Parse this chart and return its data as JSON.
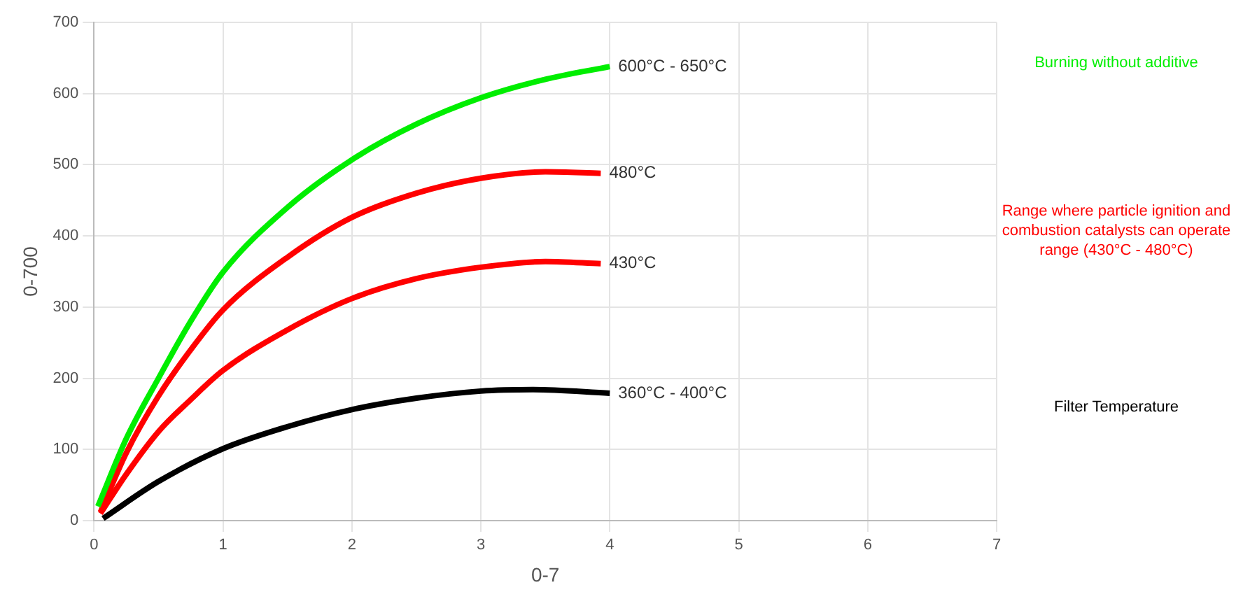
{
  "chart_data": {
    "type": "line",
    "xlabel": "0-7",
    "ylabel": "0-700",
    "xlim": [
      0,
      7
    ],
    "xticks": [
      0,
      1,
      2,
      3,
      4,
      5,
      6,
      7
    ],
    "ylim": [
      0,
      700
    ],
    "yticks": [
      0,
      100,
      200,
      300,
      400,
      500,
      600,
      700
    ],
    "grid": true,
    "legend": false,
    "marker": "none",
    "line_style": "solid",
    "series": [
      {
        "name": "600°C - 650°C",
        "color": "#00ee00",
        "x": [
          0.03,
          0.25,
          0.5,
          0.75,
          1,
          1.5,
          2,
          2.5,
          3,
          3.5,
          4
        ],
        "values": [
          20,
          115,
          200,
          280,
          349,
          440,
          507,
          557,
          594,
          620,
          638
        ]
      },
      {
        "name": "480°C",
        "color": "#ff0000",
        "x": [
          0.05,
          0.25,
          0.5,
          0.75,
          1,
          1.5,
          2,
          2.5,
          3,
          3.5,
          3.93
        ],
        "values": [
          12,
          95,
          175,
          240,
          296,
          370,
          426,
          460,
          481,
          490,
          488
        ]
      },
      {
        "name": "430°C",
        "color": "#ff0000",
        "x": [
          0.05,
          0.25,
          0.5,
          0.75,
          1,
          1.5,
          2,
          2.5,
          3,
          3.5,
          3.93
        ],
        "values": [
          10,
          65,
          125,
          170,
          211,
          268,
          312,
          340,
          356,
          364,
          361
        ]
      },
      {
        "name": "360°C - 400°C",
        "color": "#000000",
        "x": [
          0.07,
          0.5,
          1,
          1.5,
          2,
          2.5,
          3,
          3.4,
          4
        ],
        "values": [
          3,
          55,
          101,
          132,
          156,
          172,
          182,
          184,
          179
        ]
      }
    ],
    "annotations": [
      "Burning without additive",
      "Range where particle ignition and combustion catalysts can operate range (430°C - 480°C)",
      "Filter Temperature"
    ]
  }
}
